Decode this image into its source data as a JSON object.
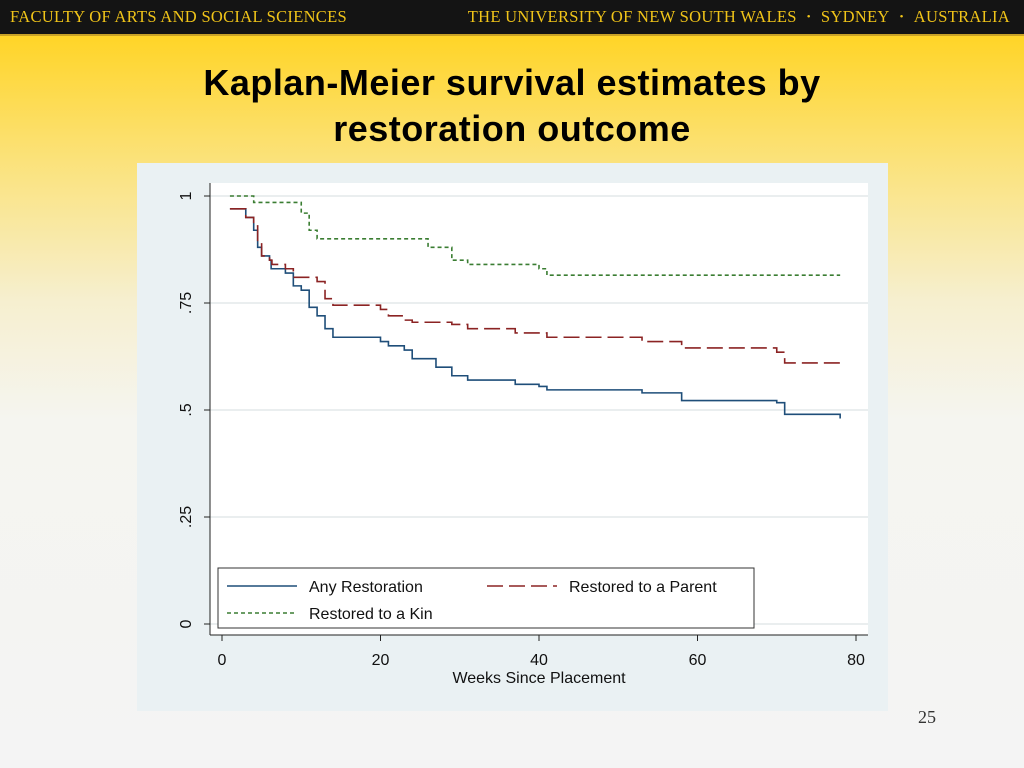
{
  "banner": {
    "left": "FACULTY OF ARTS AND SOCIAL SCIENCES",
    "right": [
      "THE UNIVERSITY OF NEW SOUTH WALES",
      "SYDNEY",
      "AUSTRALIA"
    ],
    "separator": "•"
  },
  "slide": {
    "title_line1": "Kaplan-Meier survival estimates by",
    "title_line2": "restoration outcome",
    "page_number": "25"
  },
  "chart_data": {
    "type": "line",
    "title": "",
    "xlabel": "Weeks Since Placement",
    "ylabel": "",
    "xlim": [
      0,
      80
    ],
    "ylim": [
      0,
      1
    ],
    "x_ticks": [
      0,
      20,
      40,
      60,
      80
    ],
    "x_tick_labels": [
      "0",
      "20",
      "40",
      "60",
      "80"
    ],
    "y_ticks": [
      0,
      0.25,
      0.5,
      0.75,
      1
    ],
    "y_tick_labels": [
      "0",
      ".25",
      ".5",
      ".75",
      "1"
    ],
    "grid": "horizontal",
    "legend_position": "bottom-left inside",
    "series": [
      {
        "name": "Any Restoration",
        "color": "#1f4e79",
        "dash": "solid",
        "points": [
          [
            1,
            0.97
          ],
          [
            3,
            0.95
          ],
          [
            4,
            0.92
          ],
          [
            4.5,
            0.88
          ],
          [
            5,
            0.86
          ],
          [
            6,
            0.85
          ],
          [
            6.2,
            0.83
          ],
          [
            8,
            0.82
          ],
          [
            9,
            0.79
          ],
          [
            10,
            0.78
          ],
          [
            11,
            0.74
          ],
          [
            12,
            0.72
          ],
          [
            13,
            0.69
          ],
          [
            14,
            0.67
          ],
          [
            20,
            0.66
          ],
          [
            21,
            0.65
          ],
          [
            23,
            0.64
          ],
          [
            24,
            0.62
          ],
          [
            27,
            0.6
          ],
          [
            29,
            0.58
          ],
          [
            31,
            0.57
          ],
          [
            35,
            0.57
          ],
          [
            37,
            0.56
          ],
          [
            40,
            0.555
          ],
          [
            41,
            0.547
          ],
          [
            53,
            0.54
          ],
          [
            58,
            0.522
          ],
          [
            70,
            0.517
          ],
          [
            71,
            0.49
          ],
          [
            78,
            0.48
          ]
        ]
      },
      {
        "name": "Restored to a Parent",
        "color": "#8b2323",
        "dash": "long-dash",
        "points": [
          [
            1,
            0.97
          ],
          [
            3,
            0.95
          ],
          [
            4,
            0.93
          ],
          [
            4.5,
            0.89
          ],
          [
            5,
            0.86
          ],
          [
            6,
            0.85
          ],
          [
            6.3,
            0.84
          ],
          [
            8,
            0.83
          ],
          [
            9,
            0.81
          ],
          [
            12,
            0.8
          ],
          [
            13,
            0.76
          ],
          [
            14,
            0.745
          ],
          [
            20,
            0.735
          ],
          [
            21,
            0.72
          ],
          [
            23,
            0.71
          ],
          [
            24,
            0.705
          ],
          [
            29,
            0.7
          ],
          [
            31,
            0.69
          ],
          [
            35,
            0.69
          ],
          [
            37,
            0.68
          ],
          [
            40,
            0.68
          ],
          [
            41,
            0.67
          ],
          [
            53,
            0.66
          ],
          [
            58,
            0.645
          ],
          [
            70,
            0.635
          ],
          [
            71,
            0.61
          ],
          [
            78,
            0.6
          ]
        ]
      },
      {
        "name": "Restored to a Kin",
        "color": "#3a7d32",
        "dash": "short-dash",
        "points": [
          [
            1,
            1.0
          ],
          [
            3,
            1.0
          ],
          [
            4,
            0.985
          ],
          [
            9,
            0.985
          ],
          [
            10,
            0.96
          ],
          [
            11,
            0.92
          ],
          [
            12,
            0.9
          ],
          [
            23,
            0.9
          ],
          [
            26,
            0.88
          ],
          [
            29,
            0.85
          ],
          [
            31,
            0.84
          ],
          [
            35,
            0.84
          ],
          [
            40,
            0.83
          ],
          [
            41,
            0.815
          ],
          [
            78,
            0.815
          ]
        ]
      }
    ]
  }
}
